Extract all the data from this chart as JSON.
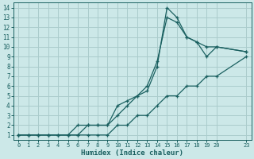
{
  "xlabel": "Humidex (Indice chaleur)",
  "bg_color": "#cce8e8",
  "grid_color": "#aacccc",
  "line_color": "#1a6060",
  "xlim": [
    -0.5,
    23.5
  ],
  "ylim": [
    0.5,
    14.5
  ],
  "xticks": [
    0,
    1,
    2,
    3,
    4,
    5,
    6,
    7,
    8,
    9,
    10,
    11,
    12,
    13,
    14,
    15,
    16,
    17,
    18,
    19,
    20,
    23
  ],
  "yticks": [
    1,
    2,
    3,
    4,
    5,
    6,
    7,
    8,
    9,
    10,
    11,
    12,
    13,
    14
  ],
  "line1_x": [
    0,
    1,
    2,
    3,
    4,
    5,
    6,
    7,
    8,
    9,
    10,
    11,
    12,
    13,
    14,
    15,
    16,
    17,
    18,
    19,
    20,
    23
  ],
  "line1_y": [
    1,
    1,
    1,
    1,
    1,
    1,
    1,
    1,
    1,
    1,
    2,
    2,
    3,
    3,
    4,
    5,
    5,
    6,
    6,
    7,
    7,
    9
  ],
  "line2_x": [
    0,
    1,
    2,
    3,
    4,
    5,
    6,
    7,
    8,
    9,
    10,
    11,
    12,
    13,
    14,
    15,
    16,
    17,
    18,
    19,
    20,
    23
  ],
  "line2_y": [
    1,
    1,
    1,
    1,
    1,
    1,
    1,
    2,
    2,
    2,
    3,
    4,
    5,
    5.5,
    8,
    14,
    13,
    11,
    10.5,
    10,
    10,
    9.5
  ],
  "line3_x": [
    0,
    1,
    2,
    3,
    4,
    5,
    6,
    7,
    8,
    9,
    10,
    11,
    12,
    13,
    14,
    15,
    16,
    17,
    18,
    19,
    20,
    23
  ],
  "line3_y": [
    1,
    1,
    1,
    1,
    1,
    1,
    2,
    2,
    2,
    2,
    4,
    4.5,
    5,
    6,
    8.5,
    13,
    12.5,
    11,
    10.5,
    9,
    10,
    9.5
  ]
}
